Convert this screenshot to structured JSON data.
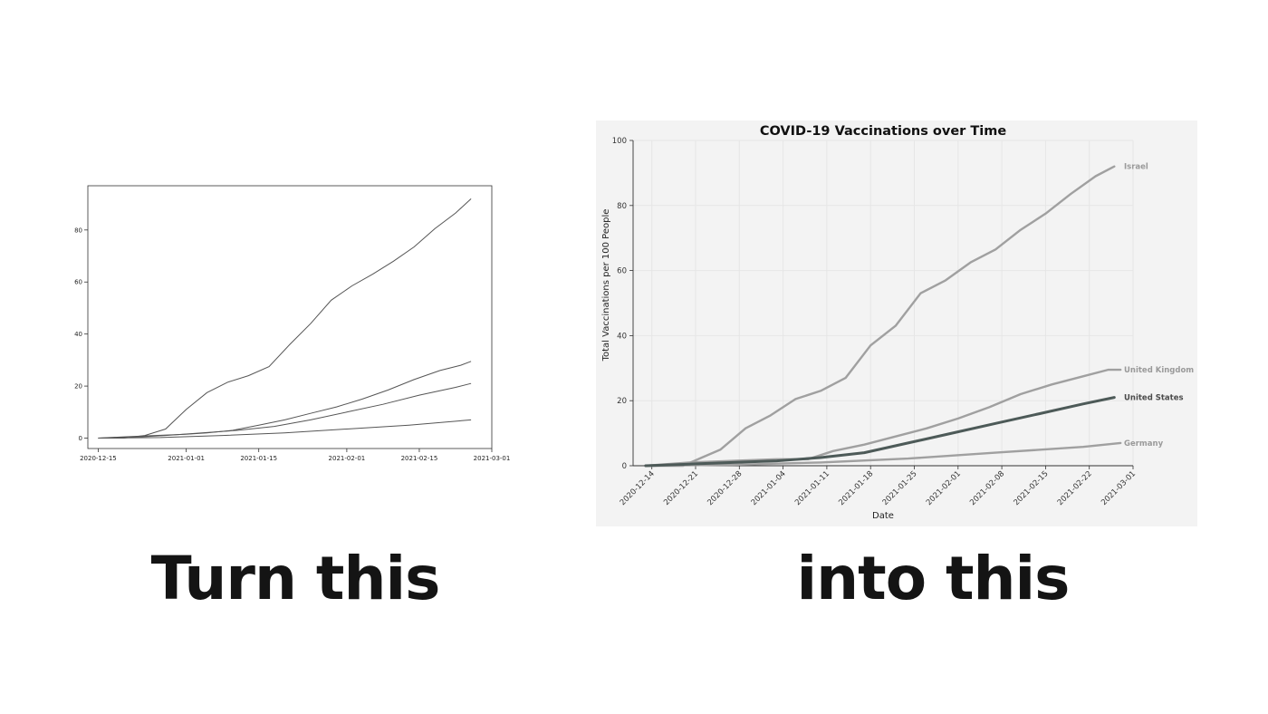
{
  "captions": {
    "left": "Turn this",
    "right": "into this"
  },
  "colors": {
    "before_line": "#555555",
    "after_background": "#f3f3f3",
    "after_grid": "#e6e6e6",
    "after_muted_line": "#a0a0a0",
    "after_highlight_line": "#4d5a58",
    "after_label_muted": "#9a9a9a",
    "after_label_highlight": "#4a4a4a"
  },
  "chart_data": [
    {
      "type": "line",
      "title": "",
      "xlabel": "",
      "ylabel": "",
      "x_ticks": [
        "2020-12-15",
        "2021-01-01",
        "2021-01-15",
        "2021-02-01",
        "2021-02-15",
        "2021-03-01"
      ],
      "y_ticks": [
        0,
        20,
        40,
        60,
        80
      ],
      "xlim": [
        "2020-12-13",
        "2021-03-01"
      ],
      "ylim": [
        -4,
        97
      ],
      "grid": false,
      "legend": "none",
      "series": [
        {
          "x": [
            "2020-12-15",
            "2020-12-20",
            "2020-12-24",
            "2020-12-28",
            "2021-01-01",
            "2021-01-05",
            "2021-01-09",
            "2021-01-13",
            "2021-01-17",
            "2021-01-21",
            "2021-01-25",
            "2021-01-29",
            "2021-02-02",
            "2021-02-06",
            "2021-02-10",
            "2021-02-14",
            "2021-02-18",
            "2021-02-22",
            "2021-02-25"
          ],
          "y": [
            0,
            0,
            1,
            3.5,
            11,
            17.5,
            21.5,
            24,
            27.5,
            36,
            44,
            53,
            58.5,
            63,
            68,
            73.5,
            80.5,
            86.5,
            92
          ]
        },
        {
          "x": [
            "2020-12-15",
            "2020-12-20",
            "2020-12-26",
            "2021-01-01",
            "2021-01-05",
            "2021-01-10",
            "2021-01-15",
            "2021-01-20",
            "2021-01-25",
            "2021-01-30",
            "2021-02-04",
            "2021-02-09",
            "2021-02-14",
            "2021-02-19",
            "2021-02-23",
            "2021-02-25"
          ],
          "y": [
            0,
            0.5,
            1,
            1.5,
            2,
            3,
            5,
            7,
            9.5,
            12,
            15,
            18.5,
            22.5,
            26,
            28,
            29.5
          ]
        },
        {
          "x": [
            "2020-12-15",
            "2020-12-21",
            "2020-12-28",
            "2021-01-04",
            "2021-01-11",
            "2021-01-18",
            "2021-01-25",
            "2021-02-01",
            "2021-02-08",
            "2021-02-15",
            "2021-02-22",
            "2021-02-25"
          ],
          "y": [
            0,
            0.3,
            1,
            2,
            3,
            4.5,
            7,
            10,
            13,
            16.5,
            19.5,
            21
          ]
        },
        {
          "x": [
            "2020-12-15",
            "2020-12-27",
            "2021-01-08",
            "2021-01-20",
            "2021-02-01",
            "2021-02-13",
            "2021-02-25"
          ],
          "y": [
            0,
            0.2,
            1,
            2,
            3.5,
            5,
            7
          ]
        }
      ]
    },
    {
      "type": "line",
      "title": "COVID-19 Vaccinations over Time",
      "xlabel": "Date",
      "ylabel": "Total Vaccinations per 100 People",
      "x_ticks": [
        "2020-12-14",
        "2020-12-21",
        "2020-12-28",
        "2021-01-04",
        "2021-01-11",
        "2021-01-18",
        "2021-01-25",
        "2021-02-01",
        "2021-02-08",
        "2021-02-15",
        "2021-02-22",
        "2021-03-01"
      ],
      "y_ticks": [
        0,
        20,
        40,
        60,
        80,
        100
      ],
      "xlim": [
        "2020-12-11",
        "2021-03-01"
      ],
      "ylim": [
        0,
        100
      ],
      "grid": true,
      "legend": "direct labels at line ends",
      "series": [
        {
          "name": "Israel",
          "highlight": false,
          "x": [
            "2020-12-13",
            "2020-12-19",
            "2020-12-22",
            "2020-12-25",
            "2020-12-29",
            "2021-01-02",
            "2021-01-06",
            "2021-01-10",
            "2021-01-14",
            "2021-01-18",
            "2021-01-22",
            "2021-01-26",
            "2021-01-30",
            "2021-02-03",
            "2021-02-07",
            "2021-02-11",
            "2021-02-15",
            "2021-02-19",
            "2021-02-23",
            "2021-02-26"
          ],
          "y": [
            0,
            0,
            2.5,
            5,
            11.5,
            15.5,
            20.5,
            23,
            27,
            37,
            43,
            53,
            57,
            62.5,
            66.5,
            72.5,
            77.5,
            83.5,
            89,
            92
          ]
        },
        {
          "name": "United Kingdom",
          "highlight": false,
          "x": [
            "2020-12-13",
            "2020-12-20",
            "2020-12-27",
            "2021-01-03",
            "2021-01-08",
            "2021-01-12",
            "2021-01-17",
            "2021-01-22",
            "2021-01-27",
            "2021-02-01",
            "2021-02-06",
            "2021-02-11",
            "2021-02-16",
            "2021-02-21",
            "2021-02-25",
            "2021-02-27"
          ],
          "y": [
            0,
            1,
            1.5,
            2,
            2,
            4.5,
            6.5,
            9,
            11.5,
            14.5,
            18,
            22,
            25,
            27.5,
            29.5,
            29.5
          ]
        },
        {
          "name": "United States",
          "highlight": true,
          "x": [
            "2020-12-13",
            "2020-12-20",
            "2020-12-27",
            "2021-01-03",
            "2021-01-10",
            "2021-01-17",
            "2021-01-24",
            "2021-01-31",
            "2021-02-07",
            "2021-02-14",
            "2021-02-21",
            "2021-02-26"
          ],
          "y": [
            0,
            0.5,
            1,
            1.5,
            2.5,
            4,
            7,
            10,
            13,
            16,
            19,
            21
          ]
        },
        {
          "name": "Germany",
          "highlight": false,
          "x": [
            "2020-12-13",
            "2020-12-27",
            "2021-01-10",
            "2021-01-24",
            "2021-02-07",
            "2021-02-21",
            "2021-02-27"
          ],
          "y": [
            0,
            0.3,
            1,
            2.2,
            4,
            5.8,
            7
          ]
        }
      ]
    }
  ]
}
